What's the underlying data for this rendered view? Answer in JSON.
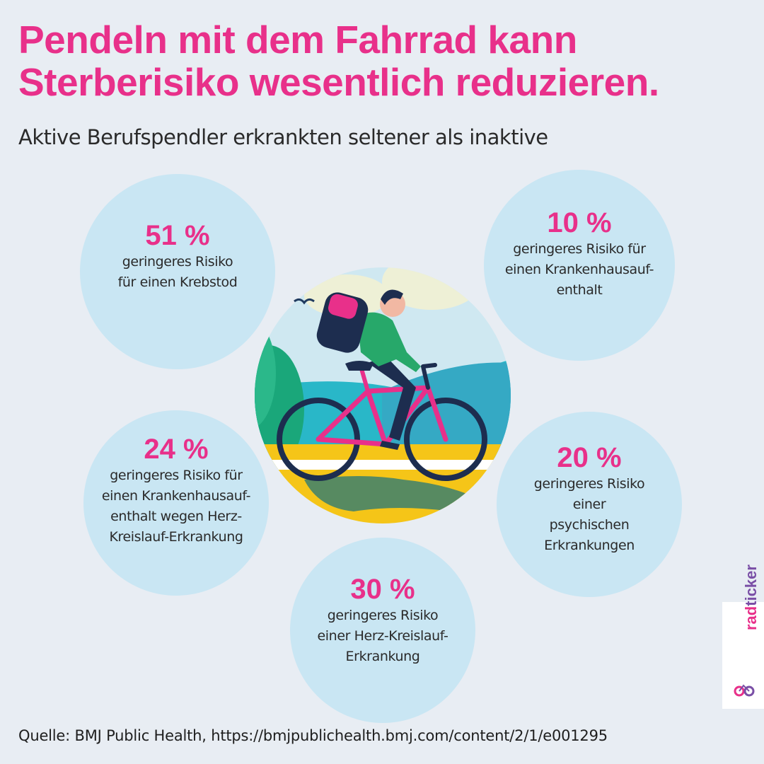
{
  "title": "Pendeln mit dem Fahrrad kann Sterberisiko wesentlich reduzieren.",
  "subtitle": "Aktive Berufspendler erkrankten seltener als inaktive",
  "stats": [
    {
      "pct": "51 %",
      "lines": [
        "geringeres Risiko",
        "für einen Krebstod"
      ]
    },
    {
      "pct": "10 %",
      "lines": [
        "geringeres Risiko für",
        "einen Krankenhausauf-",
        "enthalt"
      ]
    },
    {
      "pct": "24 %",
      "lines": [
        "geringeres Risiko für",
        "einen Krankenhausauf-",
        "enthalt wegen Herz-",
        "Kreislauf-Erkrankung"
      ]
    },
    {
      "pct": "20 %",
      "lines": [
        "geringeres Risiko",
        "einer",
        "psychischen",
        "Erkrankungen"
      ]
    },
    {
      "pct": "30 %",
      "lines": [
        "geringeres Risiko",
        "einer Herz-Kreislauf-",
        "Erkrankung"
      ]
    }
  ],
  "source": "Quelle: BMJ Public Health, https://bmjpublichealth.bmj.com/content/2/1/e001295",
  "logo": {
    "line1": "rad",
    "line2": "ticker"
  },
  "colors": {
    "accent": "#e8308a",
    "bubble": "#c9e6f3",
    "background": "#e8edf3"
  },
  "illustration": "cyclist-with-backpack"
}
